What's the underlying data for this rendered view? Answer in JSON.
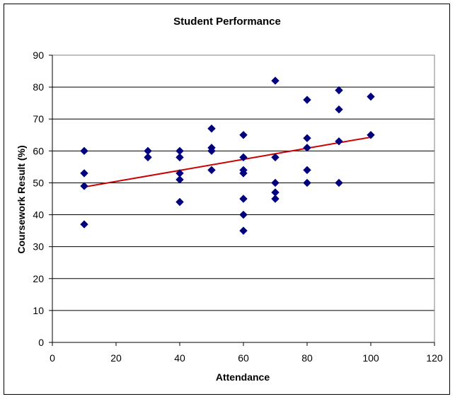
{
  "chart_data": {
    "type": "scatter",
    "title": "Student Performance",
    "xlabel": "Attendance",
    "ylabel": "Coursework Result (%)",
    "xlim": [
      0,
      120
    ],
    "ylim": [
      0,
      90
    ],
    "x_ticks": [
      0,
      20,
      40,
      60,
      80,
      100,
      120
    ],
    "y_ticks": [
      0,
      10,
      20,
      30,
      40,
      50,
      60,
      70,
      80,
      90
    ],
    "grid": "horizontal major",
    "legend": "none",
    "marker": "diamond",
    "marker_color": "#00007f",
    "trendline_color": "#cc0000",
    "series": [
      {
        "points": [
          [
            10,
            60
          ],
          [
            10,
            53
          ],
          [
            10,
            49
          ],
          [
            10,
            37
          ],
          [
            30,
            60
          ],
          [
            30,
            58
          ],
          [
            40,
            60
          ],
          [
            40,
            58
          ],
          [
            40,
            53
          ],
          [
            40,
            51
          ],
          [
            40,
            44
          ],
          [
            50,
            67
          ],
          [
            50,
            61
          ],
          [
            50,
            60
          ],
          [
            50,
            54
          ],
          [
            60,
            65
          ],
          [
            60,
            58
          ],
          [
            60,
            54
          ],
          [
            60,
            53
          ],
          [
            60,
            45
          ],
          [
            60,
            40
          ],
          [
            60,
            35
          ],
          [
            70,
            82
          ],
          [
            70,
            58
          ],
          [
            70,
            50
          ],
          [
            70,
            47
          ],
          [
            70,
            45
          ],
          [
            80,
            76
          ],
          [
            80,
            64
          ],
          [
            80,
            61
          ],
          [
            80,
            54
          ],
          [
            80,
            50
          ],
          [
            90,
            79
          ],
          [
            90,
            73
          ],
          [
            90,
            63
          ],
          [
            90,
            50
          ],
          [
            100,
            77
          ],
          [
            100,
            65
          ]
        ]
      }
    ],
    "trendline": {
      "type": "linear",
      "from": [
        10,
        48.7
      ],
      "to": [
        100,
        64.3
      ]
    }
  }
}
